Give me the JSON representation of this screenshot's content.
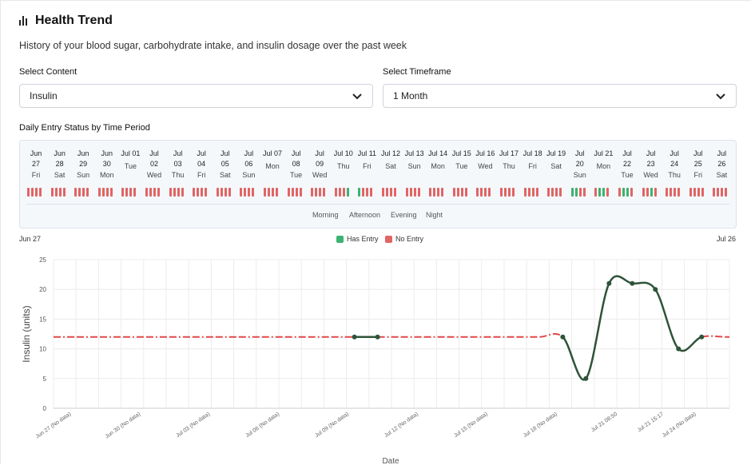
{
  "header": {
    "title": "Health Trend",
    "description": "History of your blood sugar, carbohydrate intake, and insulin dosage over the past week"
  },
  "controls": {
    "content_label": "Select Content",
    "content_value": "Insulin",
    "timeframe_label": "Select Timeframe",
    "timeframe_value": "1 Month"
  },
  "status": {
    "title": "Daily Entry Status by Time Period",
    "days": [
      {
        "md": "Jun 27",
        "wd": "Fri",
        "e": [
          0,
          0,
          0,
          0
        ]
      },
      {
        "md": "Jun 28",
        "wd": "Sat",
        "e": [
          0,
          0,
          0,
          0
        ]
      },
      {
        "md": "Jun 29",
        "wd": "Sun",
        "e": [
          0,
          0,
          0,
          0
        ]
      },
      {
        "md": "Jun 30",
        "wd": "Mon",
        "e": [
          0,
          0,
          0,
          0
        ]
      },
      {
        "md": "Jul 01",
        "wd": "Tue",
        "e": [
          0,
          0,
          0,
          0
        ]
      },
      {
        "md": "Jul 02",
        "wd": "Wed",
        "e": [
          0,
          0,
          0,
          0
        ]
      },
      {
        "md": "Jul 03",
        "wd": "Thu",
        "e": [
          0,
          0,
          0,
          0
        ]
      },
      {
        "md": "Jul 04",
        "wd": "Fri",
        "e": [
          0,
          0,
          0,
          0
        ]
      },
      {
        "md": "Jul 05",
        "wd": "Sat",
        "e": [
          0,
          0,
          0,
          0
        ]
      },
      {
        "md": "Jul 06",
        "wd": "Sun",
        "e": [
          0,
          0,
          0,
          0
        ]
      },
      {
        "md": "Jul 07",
        "wd": "Mon",
        "e": [
          0,
          0,
          0,
          0
        ]
      },
      {
        "md": "Jul 08",
        "wd": "Tue",
        "e": [
          0,
          0,
          0,
          0
        ]
      },
      {
        "md": "Jul 09",
        "wd": "Wed",
        "e": [
          0,
          0,
          0,
          0
        ]
      },
      {
        "md": "Jul 10",
        "wd": "Thu",
        "e": [
          0,
          0,
          0,
          1
        ]
      },
      {
        "md": "Jul 11",
        "wd": "Fri",
        "e": [
          1,
          0,
          0,
          0
        ]
      },
      {
        "md": "Jul 12",
        "wd": "Sat",
        "e": [
          0,
          0,
          0,
          0
        ]
      },
      {
        "md": "Jul 13",
        "wd": "Sun",
        "e": [
          0,
          0,
          0,
          0
        ]
      },
      {
        "md": "Jul 14",
        "wd": "Mon",
        "e": [
          0,
          0,
          0,
          0
        ]
      },
      {
        "md": "Jul 15",
        "wd": "Tue",
        "e": [
          0,
          0,
          0,
          0
        ]
      },
      {
        "md": "Jul 16",
        "wd": "Wed",
        "e": [
          0,
          0,
          0,
          0
        ]
      },
      {
        "md": "Jul 17",
        "wd": "Thu",
        "e": [
          0,
          0,
          0,
          0
        ]
      },
      {
        "md": "Jul 18",
        "wd": "Fri",
        "e": [
          0,
          0,
          0,
          0
        ]
      },
      {
        "md": "Jul 19",
        "wd": "Sat",
        "e": [
          0,
          0,
          0,
          0
        ]
      },
      {
        "md": "Jul 20",
        "wd": "Sun",
        "e": [
          1,
          1,
          0,
          0
        ]
      },
      {
        "md": "Jul 21",
        "wd": "Mon",
        "e": [
          0,
          1,
          1,
          0
        ]
      },
      {
        "md": "Jul 22",
        "wd": "Tue",
        "e": [
          0,
          1,
          1,
          0
        ]
      },
      {
        "md": "Jul 23",
        "wd": "Wed",
        "e": [
          0,
          0,
          1,
          0
        ]
      },
      {
        "md": "Jul 24",
        "wd": "Thu",
        "e": [
          0,
          0,
          0,
          0
        ]
      },
      {
        "md": "Jul 25",
        "wd": "Fri",
        "e": [
          0,
          0,
          0,
          0
        ]
      },
      {
        "md": "Jul 26",
        "wd": "Sat",
        "e": [
          0,
          0,
          0,
          0
        ]
      }
    ],
    "periods": [
      "Morning",
      "Afternoon",
      "Evening",
      "Night"
    ],
    "legend": {
      "has": "Has Entry",
      "none": "No Entry"
    },
    "range_start": "Jun 27",
    "range_end": "Jul 26",
    "colors": {
      "has": "#3cb371",
      "none": "#e06565"
    }
  },
  "chart_data": {
    "type": "line",
    "ylabel": "Insulin (units)",
    "xlabel": "Date",
    "ylim": [
      0,
      25
    ],
    "yticks": [
      0,
      5,
      10,
      15,
      20,
      25
    ],
    "xticks": [
      "Jun 27 (No data)",
      "Jun 30 (No data)",
      "Jul 03 (No data)",
      "Jul 06 (No data)",
      "Jul 09 (No data)",
      "Jul 12 (No data)",
      "Jul 15 (No data)",
      "Jul 18 (No data)",
      "Jul 21 08:50",
      "Jul 21 15:17",
      "Jul 24 (No data)"
    ],
    "n": 30,
    "series": [
      {
        "name": "Insulin",
        "values": [
          12,
          12,
          12,
          12,
          12,
          12,
          12,
          12,
          12,
          12,
          12,
          12,
          12,
          12,
          12,
          12,
          12,
          12,
          12,
          12,
          12,
          12,
          12,
          5,
          21,
          21,
          20,
          10,
          12,
          12
        ],
        "has_entry": [
          0,
          0,
          0,
          0,
          0,
          0,
          0,
          0,
          0,
          0,
          0,
          0,
          0,
          1,
          1,
          0,
          0,
          0,
          0,
          0,
          0,
          0,
          1,
          1,
          1,
          1,
          1,
          1,
          1,
          0
        ]
      }
    ],
    "colors": {
      "line_entry": "#2e5339",
      "line_none": "#e04848",
      "grid": "#ececec"
    }
  }
}
